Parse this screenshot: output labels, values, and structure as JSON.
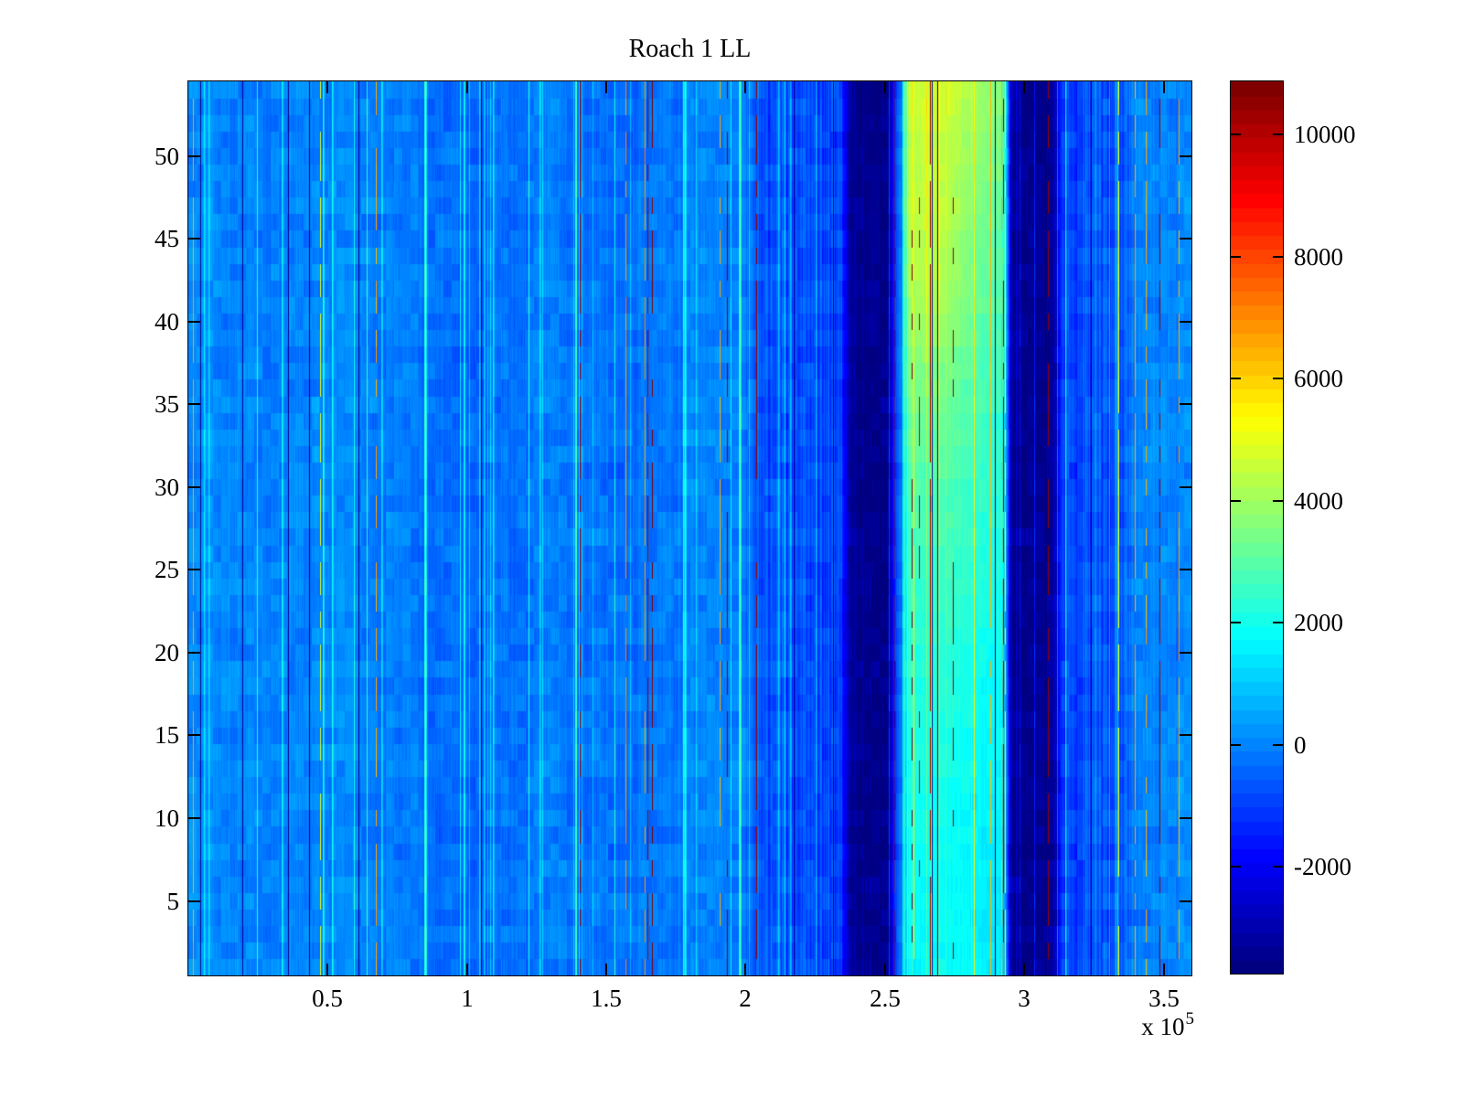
{
  "chart_data": {
    "type": "heatmap",
    "title": "Roach 1 LL",
    "xlabel": "",
    "ylabel": "",
    "x_range": [
      0,
      360000
    ],
    "y_range": [
      0.5,
      54.5
    ],
    "rows": 54,
    "x_axis_exponent_prefix": "x 10",
    "x_axis_exponent_power": "5",
    "x_ticks": {
      "labels": [
        "0.5",
        "1",
        "1.5",
        "2",
        "2.5",
        "3",
        "3.5"
      ],
      "values": [
        50000,
        100000,
        150000,
        200000,
        250000,
        300000,
        350000
      ]
    },
    "y_ticks": {
      "labels": [
        "5",
        "10",
        "15",
        "20",
        "25",
        "30",
        "35",
        "40",
        "45",
        "50"
      ],
      "values": [
        5,
        10,
        15,
        20,
        25,
        30,
        35,
        40,
        45,
        50
      ]
    },
    "colormap": "jet",
    "color_levels": 64,
    "clim": [
      -3750,
      10870
    ],
    "colorbar_ticks": {
      "labels": [
        "-2000",
        "0",
        "2000",
        "4000",
        "6000",
        "8000",
        "10000"
      ],
      "values": [
        -2000,
        0,
        2000,
        4000,
        6000,
        8000,
        10000
      ]
    },
    "regions": [
      {
        "x_start": 0,
        "x_end": 205000,
        "mean_value": -140,
        "description": "striped medium-blue background"
      },
      {
        "x_start": 205000,
        "x_end": 237000,
        "mean_value": -650,
        "description": "slightly darker blue striping"
      },
      {
        "x_start": 237500,
        "x_end": 251500,
        "mean_value": -3460,
        "description": "dark navy vertical band"
      },
      {
        "x_start": 251500,
        "x_end": 258000,
        "mean_value": -350,
        "description": "blue gap between bands"
      },
      {
        "x_start": 258200,
        "x_end": 294800,
        "mean_value_bottom": 1400,
        "mean_value_top": 3900,
        "description": "bright cyan band, pale green toward top rows with yellow hotspot near rows 38-48"
      },
      {
        "x_start": 295300,
        "x_end": 310500,
        "mean_value": -3460,
        "description": "dark navy vertical band"
      },
      {
        "x_start": 310500,
        "x_end": 333000,
        "mean_value": -850,
        "description": "slightly darker blue striping"
      },
      {
        "x_start": 333000,
        "x_end": 360000,
        "mean_value": -140,
        "description": "striped medium-blue background, slightly lighter at right edge"
      }
    ],
    "special_lines": [
      {
        "x": 1500,
        "value": 6500,
        "presence": 0.9
      },
      {
        "x": 260300,
        "value": 5300,
        "presence": 0.95
      },
      {
        "x": 266500,
        "value": 5200,
        "presence": 0.9
      },
      {
        "x": 282000,
        "value": 5600,
        "presence": 1.0
      },
      {
        "x": 287700,
        "value": 6400,
        "presence": 0.85
      },
      {
        "x": 259700,
        "value": 10500,
        "presence": 0.35
      },
      {
        "x": 262100,
        "value": 9800,
        "presence": 0.3
      },
      {
        "x": 274200,
        "value": 10600,
        "presence": 0.18
      },
      {
        "x": 348600,
        "value": 10400,
        "presence": 0.5
      }
    ],
    "noise": {
      "seed": 1337,
      "column_noise_amp": 380,
      "cell_noise_amp": 540,
      "cyan_line_prob": 0.055,
      "maroon_line_prob": 0.01,
      "dark_line_prob": 0.009,
      "yellow_line_prob": 0.007,
      "orange_line_prob": 0.004
    }
  }
}
